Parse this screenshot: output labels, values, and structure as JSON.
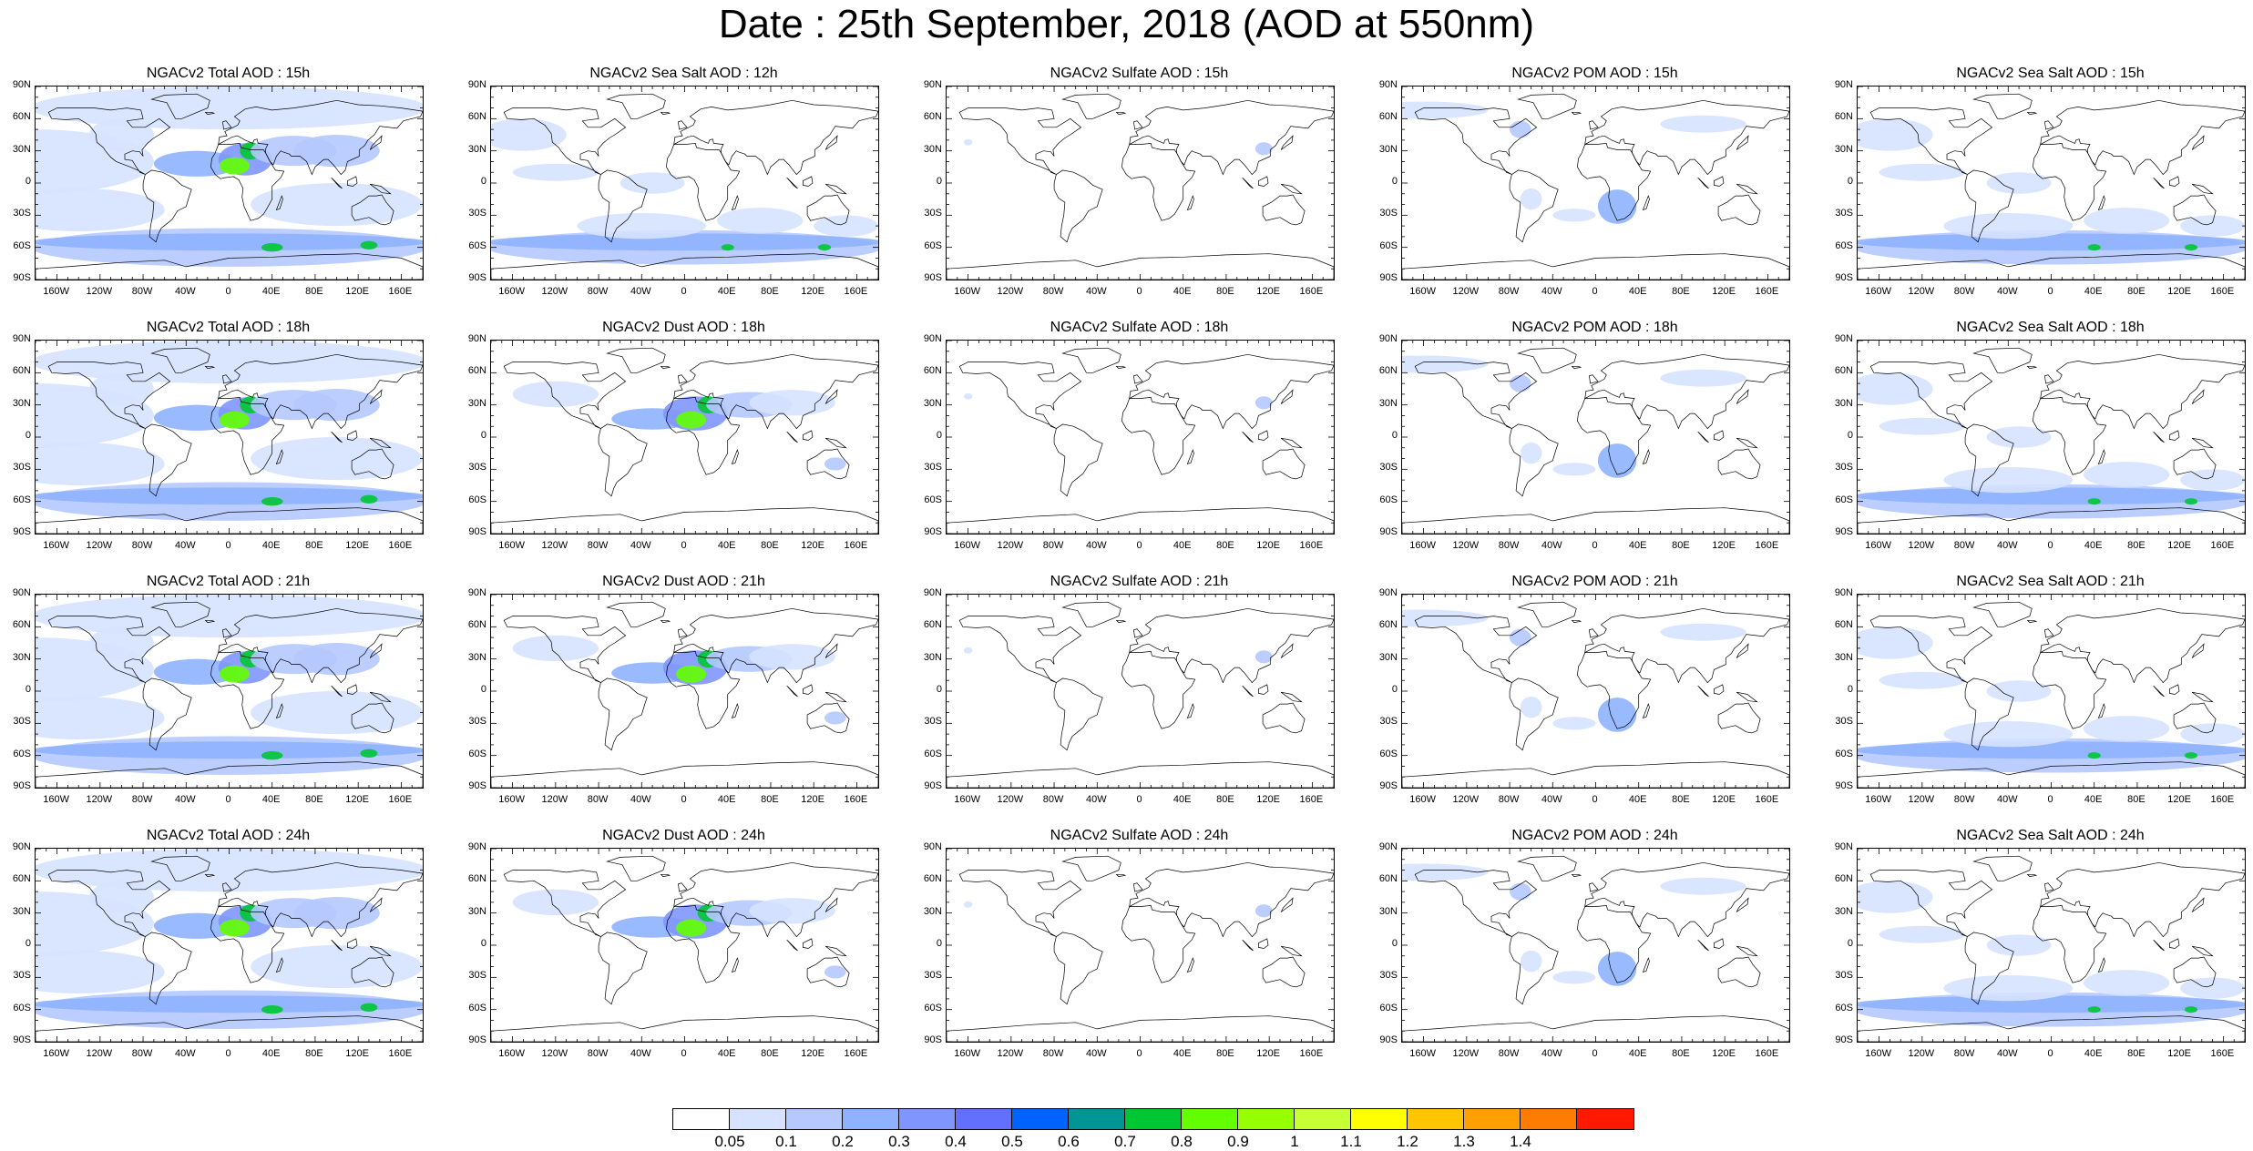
{
  "title": "Date : 25th September, 2018 (AOD at 550nm)",
  "rows": [
    [
      "NGACv2 Total AOD : 15h",
      "NGACv2 Sea Salt  AOD : 12h",
      "NGACv2 Sulfate AOD : 15h",
      "NGACv2 POM AOD : 15h",
      "NGACv2 Sea Salt  AOD : 15h"
    ],
    [
      "NGACv2 Total AOD : 18h",
      "NGACv2 Dust AOD : 18h",
      "NGACv2 Sulfate AOD : 18h",
      "NGACv2 POM AOD : 18h",
      "NGACv2 Sea Salt  AOD : 18h"
    ],
    [
      "NGACv2 Total AOD : 21h",
      "NGACv2 Dust AOD : 21h",
      "NGACv2 Sulfate AOD : 21h",
      "NGACv2 POM AOD : 21h",
      "NGACv2 Sea Salt  AOD : 21h"
    ],
    [
      "NGACv2 Total AOD : 24h",
      "NGACv2 Dust AOD : 24h",
      "NGACv2 Sulfate AOD : 24h",
      "NGACv2 POM AOD : 24h",
      "NGACv2 Sea Salt  AOD : 24h"
    ]
  ],
  "lat_labels": [
    "90N",
    "60N",
    "30N",
    "0",
    "30S",
    "60S",
    "90S"
  ],
  "lon_labels": [
    "160W",
    "120W",
    "80W",
    "40W",
    "0",
    "40E",
    "80E",
    "120E",
    "160E"
  ],
  "colorbar": {
    "colors": [
      "#ffffff",
      "#d6e2ff",
      "#b5c9ff",
      "#8eb2ff",
      "#7f96ff",
      "#6370ff",
      "#0063ff",
      "#009696",
      "#00c633",
      "#63ff00",
      "#96ff00",
      "#c6ff33",
      "#ffff00",
      "#ffc600",
      "#ffa000",
      "#ff7c00",
      "#ff1900"
    ],
    "labels": [
      "0.05",
      "0.1",
      "0.2",
      "0.3",
      "0.4",
      "0.5",
      "0.6",
      "0.7",
      "0.8",
      "0.9",
      "1",
      "1.1",
      "1.2",
      "1.3",
      "1.4"
    ]
  }
}
